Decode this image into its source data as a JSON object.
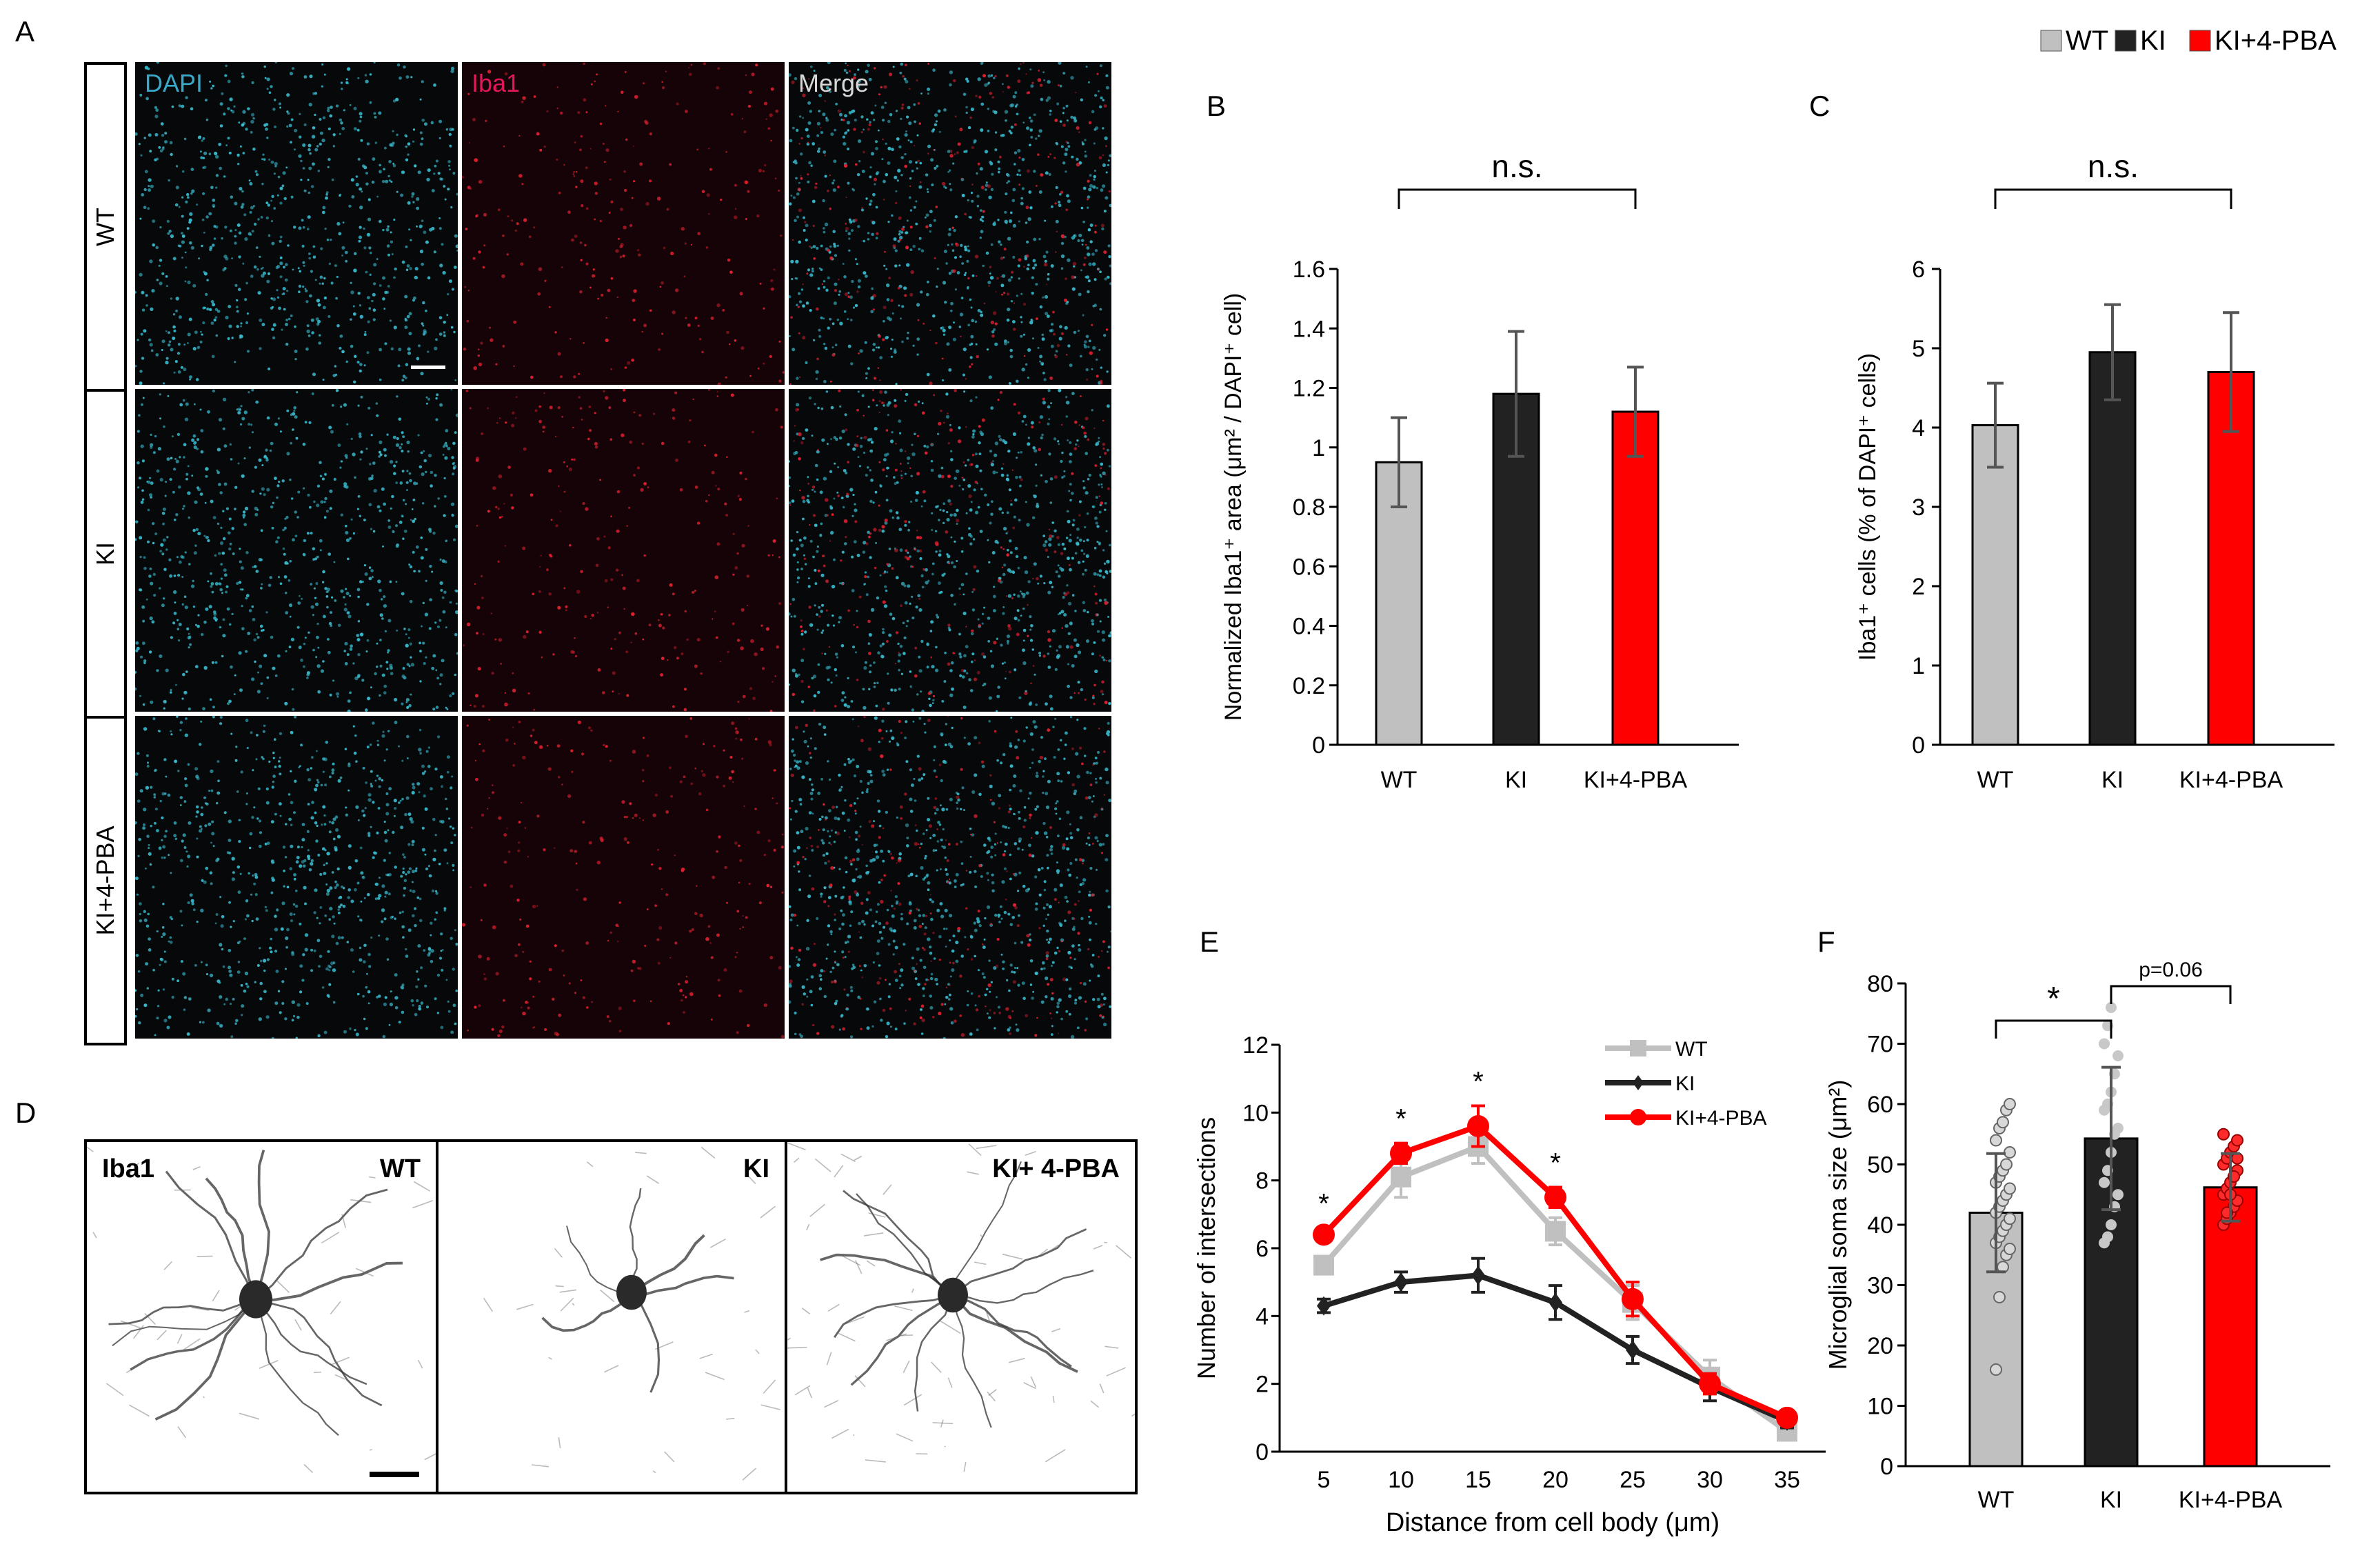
{
  "legend_top": {
    "items": [
      {
        "label": "WT",
        "color": "#c0c0c0"
      },
      {
        "label": "KI",
        "color": "#222222"
      },
      {
        "label": "KI+4-PBA",
        "color": "#ff0000"
      }
    ]
  },
  "panel_a": {
    "letter": "A",
    "channels": [
      {
        "label": "DAPI",
        "color": "#3aa9c9"
      },
      {
        "label": "Iba1",
        "color": "#e3165b"
      },
      {
        "label": "Merge",
        "color": "#d8d8d8"
      }
    ],
    "rows": [
      "WT",
      "KI",
      "KI+4-PBA"
    ]
  },
  "panel_d": {
    "letter": "D",
    "marker": "Iba1",
    "labels": [
      "WT",
      "KI",
      "KI+ 4-PBA"
    ]
  },
  "chart_data": [
    {
      "panel": "B",
      "type": "bar",
      "categories": [
        "WT",
        "KI",
        "KI+4-PBA"
      ],
      "values": [
        0.95,
        1.18,
        1.12
      ],
      "errors": [
        0.15,
        0.21,
        0.15
      ],
      "colors": [
        "#c0c0c0",
        "#222222",
        "#ff0000"
      ],
      "ylabel": "Normalized Iba1⁺ area (μm² / DAPI⁺ cell)",
      "ylim": [
        0,
        1.6
      ],
      "yticks": [
        "0",
        "0.2",
        "0.4",
        "0.6",
        "0.8",
        "1",
        "1.2",
        "1.4",
        "1.6"
      ],
      "significance": [
        {
          "from": 0,
          "to": 2,
          "label": "n.s."
        }
      ]
    },
    {
      "panel": "C",
      "type": "bar",
      "categories": [
        "WT",
        "KI",
        "KI+4-PBA"
      ],
      "values": [
        4.03,
        4.95,
        4.7
      ],
      "errors": [
        0.53,
        0.6,
        0.75
      ],
      "colors": [
        "#c0c0c0",
        "#222222",
        "#ff0000"
      ],
      "ylabel": "Iba1⁺ cells (% of DAPI⁺ cells)",
      "ylim": [
        0,
        6
      ],
      "yticks": [
        "0",
        "1",
        "2",
        "3",
        "4",
        "5",
        "6"
      ],
      "significance": [
        {
          "from": 0,
          "to": 2,
          "label": "n.s."
        }
      ]
    },
    {
      "panel": "E",
      "type": "line",
      "x": [
        5,
        10,
        15,
        20,
        25,
        30,
        35
      ],
      "xlabel": "Distance from cell body (μm)",
      "ylabel": "Number of intersections",
      "ylim": [
        0,
        12
      ],
      "yticks": [
        "0",
        "2",
        "4",
        "6",
        "8",
        "10",
        "12"
      ],
      "series": [
        {
          "name": "WT",
          "color": "#c0c0c0",
          "marker": "square",
          "values": [
            5.5,
            8.1,
            9.0,
            6.5,
            4.4,
            2.2,
            0.6
          ],
          "errors": [
            0.2,
            0.6,
            0.5,
            0.4,
            0.5,
            0.5,
            0.2
          ]
        },
        {
          "name": "KI",
          "color": "#222222",
          "marker": "diamond",
          "values": [
            4.3,
            5.0,
            5.2,
            4.4,
            3.0,
            1.9,
            0.9
          ],
          "errors": [
            0.2,
            0.3,
            0.5,
            0.5,
            0.4,
            0.4,
            0.2
          ]
        },
        {
          "name": "KI+4-PBA",
          "color": "#ff0000",
          "marker": "circle",
          "values": [
            6.4,
            8.8,
            9.6,
            7.5,
            4.5,
            2.0,
            1.0
          ],
          "errors": [
            0.2,
            0.3,
            0.6,
            0.3,
            0.5,
            0.3,
            0.1
          ]
        }
      ],
      "annotations": [
        {
          "x": 5,
          "label": "*"
        },
        {
          "x": 10,
          "label": "*"
        },
        {
          "x": 15,
          "label": "*"
        },
        {
          "x": 20,
          "label": "*"
        }
      ],
      "legend_position": "top-right"
    },
    {
      "panel": "F",
      "type": "bar",
      "categories": [
        "WT",
        "KI",
        "KI+4-PBA"
      ],
      "values": [
        42,
        54.3,
        46.2
      ],
      "errors": [
        9.8,
        11.8,
        5.6
      ],
      "colors": [
        "#c0c0c0",
        "#222222",
        "#ff0000"
      ],
      "ylabel": "Microglial soma size (μm²)",
      "ylim": [
        0,
        80
      ],
      "yticks": [
        "0",
        "10",
        "20",
        "30",
        "40",
        "50",
        "60",
        "70",
        "80"
      ],
      "points": [
        [
          16,
          28,
          33,
          35,
          36,
          37,
          38,
          39,
          40,
          41,
          42,
          43,
          44,
          45,
          46,
          47,
          48,
          49,
          50,
          52,
          54,
          56,
          57,
          59,
          60
        ],
        [
          37,
          38,
          40,
          43,
          45,
          47,
          49,
          52,
          55,
          56,
          59,
          60,
          62,
          65,
          68,
          70,
          73,
          76
        ],
        [
          40,
          41,
          42,
          43,
          44,
          45,
          46,
          47,
          48,
          49,
          50,
          51,
          52,
          53,
          54,
          55,
          42,
          45,
          48,
          51
        ]
      ],
      "significance": [
        {
          "from": 0,
          "to": 1,
          "label": "*"
        },
        {
          "from": 1,
          "to": 2,
          "label": "p=0.06"
        }
      ]
    }
  ]
}
